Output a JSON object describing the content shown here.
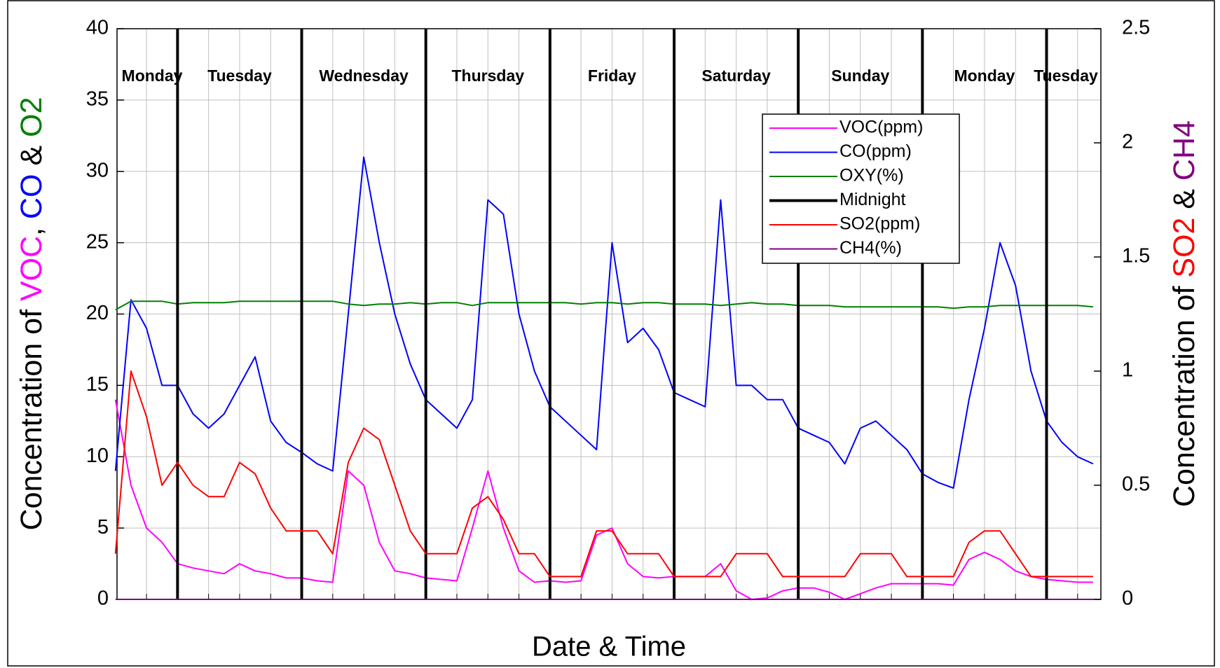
{
  "chart_data": {
    "type": "line",
    "y_label_parts": [
      {
        "text": "Concentration of ",
        "color": "#000000"
      },
      {
        "text": "VOC",
        "color": "#ff00ff"
      },
      {
        "text": ", ",
        "color": "#000000"
      },
      {
        "text": "CO",
        "color": "#0000ff"
      },
      {
        "text": " & ",
        "color": "#000000"
      },
      {
        "text": "O2",
        "color": "#008000"
      }
    ],
    "y2_label_parts": [
      {
        "text": "Concentration of ",
        "color": "#000000"
      },
      {
        "text": "SO2",
        "color": "#ff0000"
      },
      {
        "text": " & ",
        "color": "#000000"
      },
      {
        "text": "CH4",
        "color": "#800080"
      }
    ],
    "x_label": "Date & Time",
    "day_labels": [
      "Monday",
      "Tuesday",
      "Wednesday",
      "Thursday",
      "Friday",
      "Saturday",
      "Sunday",
      "Monday",
      "Tuesday"
    ],
    "grid": true,
    "legend_position": "upper right",
    "xlim": [
      12.3,
      202.5
    ],
    "xticks": [
      18,
      24,
      30,
      36,
      42,
      48,
      54,
      60,
      66,
      72,
      78,
      84,
      90,
      96,
      102,
      108,
      114,
      120,
      126,
      132,
      138,
      144,
      150,
      156,
      162,
      168,
      174,
      180,
      186,
      192,
      198
    ],
    "ylim": [
      0,
      40
    ],
    "yticks": [
      0,
      5,
      10,
      15,
      20,
      25,
      30,
      35,
      40
    ],
    "y2lim": [
      0,
      2.5
    ],
    "y2ticks": [
      0,
      0.5,
      1,
      1.5,
      2,
      2.5
    ],
    "x": [
      12,
      15,
      18,
      21,
      24,
      27,
      30,
      33,
      36,
      39,
      42,
      45,
      48,
      51,
      54,
      57,
      60,
      63,
      66,
      69,
      72,
      75,
      78,
      81,
      84,
      87,
      90,
      93,
      96,
      99,
      102,
      105,
      108,
      111,
      114,
      117,
      120,
      123,
      126,
      129,
      132,
      135,
      138,
      141,
      144,
      147,
      150,
      153,
      156,
      159,
      162,
      165,
      168,
      171,
      174,
      177,
      180,
      183,
      186,
      189,
      192,
      195,
      198,
      201
    ],
    "series": [
      {
        "name": "VOC(ppm)",
        "color": "#ff00ff",
        "values": [
          14,
          8,
          5,
          4,
          2.5,
          2.2,
          2,
          1.8,
          2.5,
          2,
          1.8,
          1.5,
          1.5,
          1.3,
          1.2,
          9,
          8,
          4,
          2,
          1.8,
          1.5,
          1.4,
          1.3,
          5,
          9,
          5,
          2,
          1.2,
          1.3,
          1.2,
          1.3,
          4.5,
          5,
          2.5,
          1.6,
          1.5,
          1.6,
          1.6,
          1.6,
          2.5,
          0.6,
          0,
          0.1,
          0.6,
          0.8,
          0.8,
          0.5,
          0,
          0.4,
          0.8,
          1.1,
          1.1,
          1.1,
          1.1,
          1,
          2.8,
          3.3,
          2.8,
          2,
          1.6,
          1.4,
          1.3,
          1.2,
          1.2
        ]
      },
      {
        "name": "CO(ppm)",
        "color": "#0000ff",
        "values": [
          9,
          21,
          19,
          15,
          15,
          13,
          12,
          13,
          15,
          17,
          12.5,
          11,
          10.3,
          9.5,
          9,
          20,
          31,
          25,
          20,
          16.5,
          14,
          13,
          12,
          14,
          28,
          27,
          20,
          16,
          13.5,
          12.5,
          11.5,
          10.5,
          25,
          18,
          19,
          17.5,
          14.5,
          14,
          13.5,
          28,
          15,
          15,
          14,
          14,
          12,
          11.5,
          11,
          9.5,
          12,
          12.5,
          11.5,
          10.5,
          8.8,
          8.2,
          7.8,
          14,
          19,
          25,
          22,
          16,
          12.5,
          11,
          10,
          9.5
        ]
      },
      {
        "name": "OXY(%)",
        "color": "#008000",
        "values": [
          20.3,
          20.9,
          20.9,
          20.9,
          20.7,
          20.8,
          20.8,
          20.8,
          20.9,
          20.9,
          20.9,
          20.9,
          20.9,
          20.9,
          20.9,
          20.7,
          20.6,
          20.7,
          20.7,
          20.8,
          20.7,
          20.8,
          20.8,
          20.6,
          20.8,
          20.8,
          20.8,
          20.8,
          20.8,
          20.8,
          20.7,
          20.8,
          20.8,
          20.7,
          20.8,
          20.8,
          20.7,
          20.7,
          20.7,
          20.6,
          20.7,
          20.8,
          20.7,
          20.7,
          20.6,
          20.6,
          20.6,
          20.5,
          20.5,
          20.5,
          20.5,
          20.5,
          20.5,
          20.5,
          20.4,
          20.5,
          20.5,
          20.6,
          20.6,
          20.6,
          20.6,
          20.6,
          20.6,
          20.5
        ]
      },
      {
        "name": "Midnight",
        "color": "#000000",
        "x": [
          24,
          48,
          72,
          96,
          120,
          144,
          168,
          192
        ]
      },
      {
        "name": "SO2(ppm)",
        "color": "#ff0000",
        "axis": "y2",
        "values": [
          0.2,
          1.0,
          0.8,
          0.5,
          0.6,
          0.5,
          0.45,
          0.45,
          0.6,
          0.55,
          0.4,
          0.3,
          0.3,
          0.3,
          0.2,
          0.6,
          0.75,
          0.7,
          0.5,
          0.3,
          0.2,
          0.2,
          0.2,
          0.4,
          0.45,
          0.35,
          0.2,
          0.2,
          0.1,
          0.1,
          0.1,
          0.3,
          0.3,
          0.2,
          0.2,
          0.2,
          0.1,
          0.1,
          0.1,
          0.1,
          0.2,
          0.2,
          0.2,
          0.1,
          0.1,
          0.1,
          0.1,
          0.1,
          0.2,
          0.2,
          0.2,
          0.1,
          0.1,
          0.1,
          0.1,
          0.25,
          0.3,
          0.3,
          0.2,
          0.1,
          0.1,
          0.1,
          0.1,
          0.1
        ]
      },
      {
        "name": "CH4(%)",
        "color": "#800080",
        "axis": "y2",
        "values": [
          0,
          0,
          0,
          0,
          0,
          0,
          0,
          0,
          0,
          0,
          0,
          0,
          0,
          0,
          0,
          0,
          0,
          0,
          0,
          0,
          0,
          0,
          0,
          0,
          0,
          0,
          0,
          0,
          0,
          0,
          0,
          0,
          0,
          0,
          0,
          0,
          0,
          0,
          0,
          0,
          0,
          0,
          0,
          0,
          0,
          0,
          0,
          0,
          0,
          0,
          0,
          0,
          0,
          0,
          0,
          0,
          0,
          0,
          0,
          0,
          0,
          0,
          0,
          0
        ]
      }
    ]
  }
}
